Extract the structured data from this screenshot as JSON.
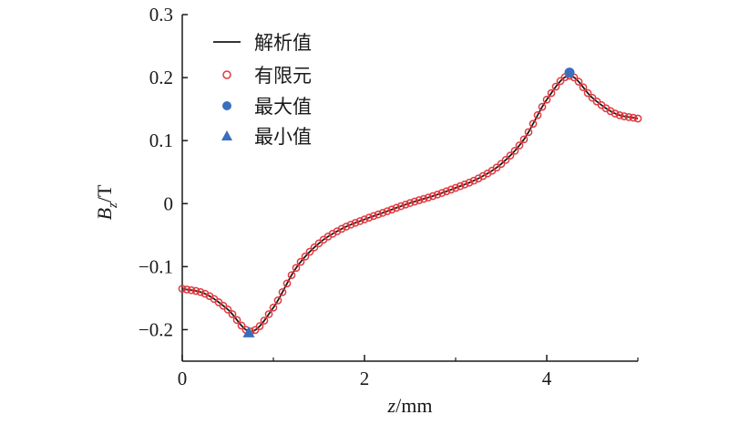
{
  "chart_data": {
    "type": "line",
    "xlabel_var": "z",
    "xlabel_unit": "/mm",
    "ylabel_var": "B",
    "ylabel_sub": "z",
    "ylabel_unit": "/T",
    "xlim": [
      0,
      5
    ],
    "ylim": [
      -0.25,
      0.3
    ],
    "xticks": [
      0,
      2,
      4
    ],
    "xtick_labels": [
      "0",
      "2",
      "4"
    ],
    "yticks": [
      -0.2,
      -0.1,
      0,
      0.1,
      0.2,
      0.3
    ],
    "ytick_labels": [
      "−0.2",
      "−0.1",
      "0",
      "0.1",
      "0.2",
      "0.3"
    ],
    "grid": false,
    "legend_position": "top-left",
    "series": [
      {
        "name": "解析值",
        "style": "solid-line",
        "color": "#1a1a1a",
        "x": [
          0,
          0.25,
          0.5,
          0.75,
          1.0,
          1.25,
          1.5,
          1.75,
          2.0,
          2.25,
          2.5,
          2.75,
          3.0,
          3.25,
          3.5,
          3.75,
          4.0,
          4.25,
          4.5,
          4.75,
          5.0
        ],
        "y": [
          -0.135,
          -0.143,
          -0.168,
          -0.203,
          -0.165,
          -0.102,
          -0.063,
          -0.04,
          -0.025,
          -0.012,
          0.001,
          0.012,
          0.025,
          0.04,
          0.063,
          0.102,
          0.165,
          0.203,
          0.168,
          0.143,
          0.135
        ]
      },
      {
        "name": "有限元",
        "style": "open-circle",
        "color": "#e0393e",
        "x": [
          0,
          0.25,
          0.5,
          0.75,
          1.0,
          1.25,
          1.5,
          1.75,
          2.0,
          2.25,
          2.5,
          2.75,
          3.0,
          3.25,
          3.5,
          3.75,
          4.0,
          4.25,
          4.5,
          4.75,
          5.0
        ],
        "y": [
          -0.135,
          -0.143,
          -0.168,
          -0.203,
          -0.165,
          -0.102,
          -0.063,
          -0.04,
          -0.025,
          -0.012,
          0.001,
          0.012,
          0.025,
          0.04,
          0.063,
          0.102,
          0.165,
          0.203,
          0.168,
          0.143,
          0.135
        ]
      },
      {
        "name": "最大值",
        "style": "filled-circle",
        "color": "#3a6fbf",
        "x": [
          4.25
        ],
        "y": [
          0.208
        ]
      },
      {
        "name": "最小值",
        "style": "filled-triangle",
        "color": "#3a6fbf",
        "x": [
          0.73
        ],
        "y": [
          -0.205
        ]
      }
    ]
  }
}
